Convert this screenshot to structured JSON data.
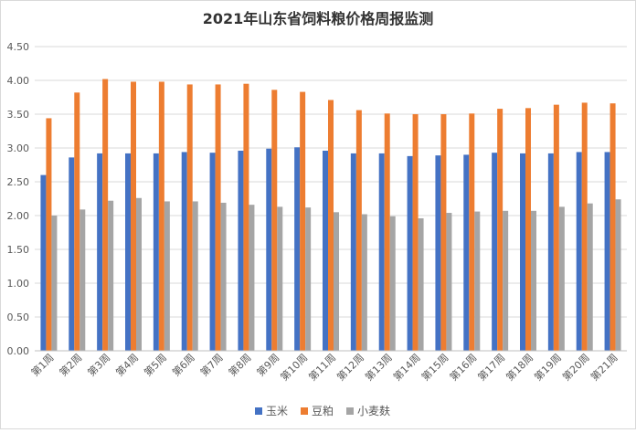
{
  "chart_data": {
    "type": "bar",
    "title": "2021年山东省饲料粮价格周报监测",
    "xlabel": "",
    "ylabel": "",
    "ylim": [
      0,
      4.5
    ],
    "yticks": [
      "0.00",
      "0.50",
      "1.00",
      "1.50",
      "2.00",
      "2.50",
      "3.00",
      "3.50",
      "4.00",
      "4.50"
    ],
    "grid": true,
    "legend_position": "bottom",
    "categories": [
      "第1周",
      "第2周",
      "第3周",
      "第4周",
      "第5周",
      "第6周",
      "第7周",
      "第8周",
      "第9周",
      "第10周",
      "第11周",
      "第12周",
      "第13周",
      "第14周",
      "第15周",
      "第16周",
      "第17周",
      "第18周",
      "第19周",
      "第20周",
      "第21周"
    ],
    "series": [
      {
        "name": "玉米",
        "color": "#4472C4",
        "values": [
          2.6,
          2.86,
          2.92,
          2.92,
          2.92,
          2.94,
          2.93,
          2.96,
          2.99,
          3.01,
          2.96,
          2.92,
          2.92,
          2.88,
          2.89,
          2.9,
          2.93,
          2.92,
          2.92,
          2.94,
          2.94
        ]
      },
      {
        "name": "豆粕",
        "color": "#ED7D31",
        "values": [
          3.44,
          3.82,
          4.02,
          3.98,
          3.98,
          3.94,
          3.94,
          3.95,
          3.86,
          3.83,
          3.71,
          3.56,
          3.51,
          3.5,
          3.5,
          3.51,
          3.58,
          3.59,
          3.64,
          3.67,
          3.66
        ]
      },
      {
        "name": "小麦麸",
        "color": "#A5A5A5",
        "values": [
          2.0,
          2.09,
          2.22,
          2.26,
          2.21,
          2.21,
          2.19,
          2.16,
          2.13,
          2.12,
          2.05,
          2.02,
          1.99,
          1.96,
          2.04,
          2.06,
          2.07,
          2.07,
          2.13,
          2.18,
          2.24
        ]
      }
    ]
  }
}
